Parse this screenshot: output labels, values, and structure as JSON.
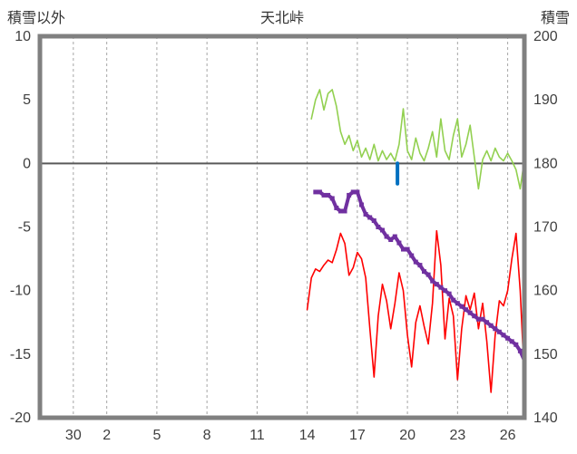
{
  "chart_data": {
    "type": "line",
    "title": "天北峠",
    "left_axis": {
      "label": "積雪以外",
      "min": -20,
      "max": 10,
      "ticks": [
        10,
        5,
        0,
        -5,
        -10,
        -15,
        -20
      ]
    },
    "right_axis": {
      "label": "積雪",
      "min": 140,
      "max": 200,
      "ticks": [
        200,
        190,
        180,
        170,
        160,
        150,
        140
      ]
    },
    "x_axis": {
      "min": 0,
      "max": 29,
      "tick_positions": [
        2,
        4,
        7,
        10,
        13,
        16,
        19,
        22,
        25,
        28
      ],
      "tick_labels": [
        "30",
        "2",
        "5",
        "8",
        "11",
        "14",
        "17",
        "20",
        "23",
        "26"
      ]
    },
    "grid": {
      "vertical": "dashed",
      "horizontal": "none",
      "zero_line": true,
      "legend": "none"
    },
    "colors": {
      "grid": "#a6a6a6",
      "zero_line": "#595959",
      "frame": "#808080",
      "text": "#3f3f3f"
    },
    "series": [
      {
        "name": "green-series",
        "axis": "left",
        "color": "#92d050",
        "width": 1.6,
        "x_start": 16.25,
        "x_step": 0.25,
        "y": [
          3.5,
          5,
          5.8,
          4.2,
          5.5,
          5.8,
          4.5,
          2.5,
          1.5,
          2.2,
          1,
          1.8,
          0.5,
          1.2,
          0.3,
          1.5,
          0.2,
          1,
          0.3,
          0.8,
          0.2,
          1.5,
          4.3,
          1,
          0.3,
          2,
          0.8,
          0.2,
          1.2,
          2.5,
          0.5,
          3.5,
          1,
          0.3,
          2.2,
          3.5,
          0.5,
          1.5,
          3,
          0.5,
          -2,
          0.3,
          1,
          0.2,
          1.2,
          0.5,
          0.2,
          0.8,
          0.2,
          -0.5,
          -2,
          0.3
        ]
      },
      {
        "name": "blue-series",
        "axis": "left",
        "color": "#0070c0",
        "width": 4,
        "x": [
          21.4,
          21.4
        ],
        "y": [
          0,
          -1.6
        ]
      },
      {
        "name": "red-series",
        "axis": "left",
        "color": "#ff0000",
        "width": 1.6,
        "x_start": 16.0,
        "x_step": 0.25,
        "y": [
          -11.5,
          -9,
          -8.3,
          -8.5,
          -8,
          -7.6,
          -7.8,
          -6.8,
          -5.5,
          -6.3,
          -8.8,
          -8.2,
          -7,
          -7.5,
          -9,
          -13,
          -16.8,
          -12,
          -9.5,
          -10.8,
          -13,
          -11,
          -8.6,
          -10,
          -13.5,
          -16,
          -12.5,
          -11.2,
          -12.8,
          -14.2,
          -11,
          -5.3,
          -8,
          -13.8,
          -10.6,
          -12,
          -17,
          -13,
          -10.4,
          -11.5,
          -10.2,
          -13,
          -11,
          -14,
          -18,
          -13.5,
          -10.8,
          -11.2,
          -10,
          -7.5,
          -5.5,
          -10,
          -17
        ]
      },
      {
        "name": "purple-series",
        "axis": "right",
        "color": "#7030a0",
        "width": 4,
        "marker": "square",
        "x_start": 16.5,
        "x_step": 0.25,
        "y": [
          175.5,
          175.5,
          175,
          175,
          174.5,
          173,
          172.5,
          172.5,
          175,
          175.5,
          175.5,
          173.5,
          172,
          171.5,
          171,
          170,
          169.5,
          168.5,
          168,
          168.5,
          167.5,
          166.5,
          166.5,
          165.5,
          164.5,
          164,
          163,
          162.5,
          161.5,
          161,
          160.5,
          160,
          159.5,
          158.5,
          158,
          157.5,
          157,
          156.5,
          156,
          155.5,
          155.5,
          155,
          154.5,
          154,
          153.5,
          153,
          152.5,
          152,
          151.5,
          150.5,
          149
        ]
      }
    ]
  }
}
